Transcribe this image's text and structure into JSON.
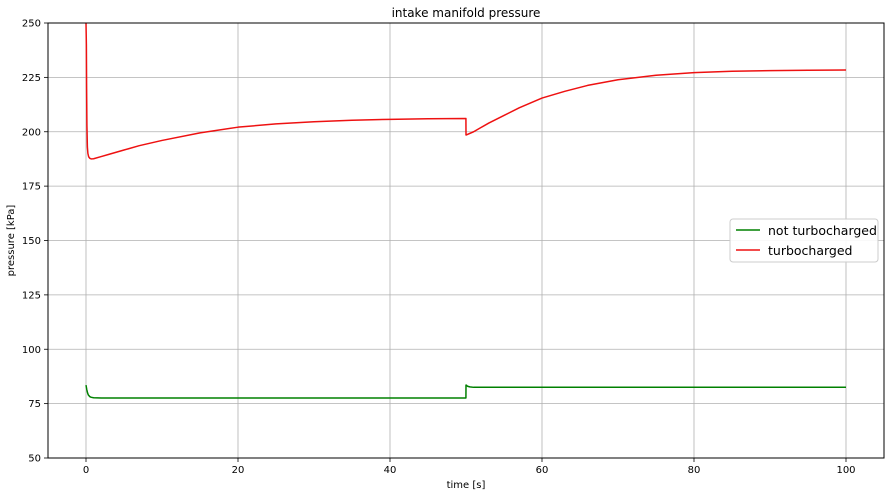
{
  "chart_data": {
    "type": "line",
    "title": "intake manifold pressure",
    "xlabel": "time [s]",
    "ylabel": "pressure [kPa]",
    "xlim": [
      -5,
      105
    ],
    "ylim": [
      50,
      250
    ],
    "xticks": [
      0,
      20,
      40,
      60,
      80,
      100
    ],
    "yticks": [
      50,
      75,
      100,
      125,
      150,
      175,
      200,
      225,
      250
    ],
    "grid": true,
    "legend_position": "center-right",
    "series": [
      {
        "name": "not turbocharged",
        "color": "#008000",
        "x": [
          0,
          0.1,
          0.2,
          0.3,
          0.5,
          0.7,
          1,
          2,
          5,
          10,
          20,
          30,
          40,
          49.99,
          50,
          50.05,
          50.2,
          50.5,
          51,
          55,
          60,
          70,
          80,
          90,
          100
        ],
        "y": [
          83.5,
          81.5,
          80,
          79,
          78.2,
          77.9,
          77.7,
          77.6,
          77.6,
          77.6,
          77.6,
          77.6,
          77.6,
          77.6,
          83.5,
          83.5,
          83,
          82.7,
          82.5,
          82.5,
          82.5,
          82.5,
          82.5,
          82.5,
          82.5
        ]
      },
      {
        "name": "turbocharged",
        "color": "#ee1111",
        "x": [
          0,
          0.05,
          0.08,
          0.12,
          0.18,
          0.25,
          0.35,
          0.5,
          0.7,
          1,
          2,
          3,
          5,
          7,
          10,
          15,
          20,
          25,
          30,
          35,
          40,
          45,
          49.99,
          50,
          51,
          52,
          53,
          55,
          57,
          60,
          63,
          66,
          70,
          75,
          80,
          85,
          90,
          95,
          100
        ],
        "y": [
          250,
          240,
          220,
          203,
          193,
          190,
          188.5,
          187.8,
          187.5,
          187.6,
          188.6,
          189.6,
          191.6,
          193.6,
          196,
          199.5,
          202.1,
          203.6,
          204.6,
          205.3,
          205.7,
          206,
          206.1,
          198.5,
          200,
          202,
          204,
          207.5,
          211,
          215.5,
          218.6,
          221.3,
          223.9,
          226,
          227.2,
          227.8,
          228.1,
          228.3,
          228.4
        ]
      }
    ]
  }
}
